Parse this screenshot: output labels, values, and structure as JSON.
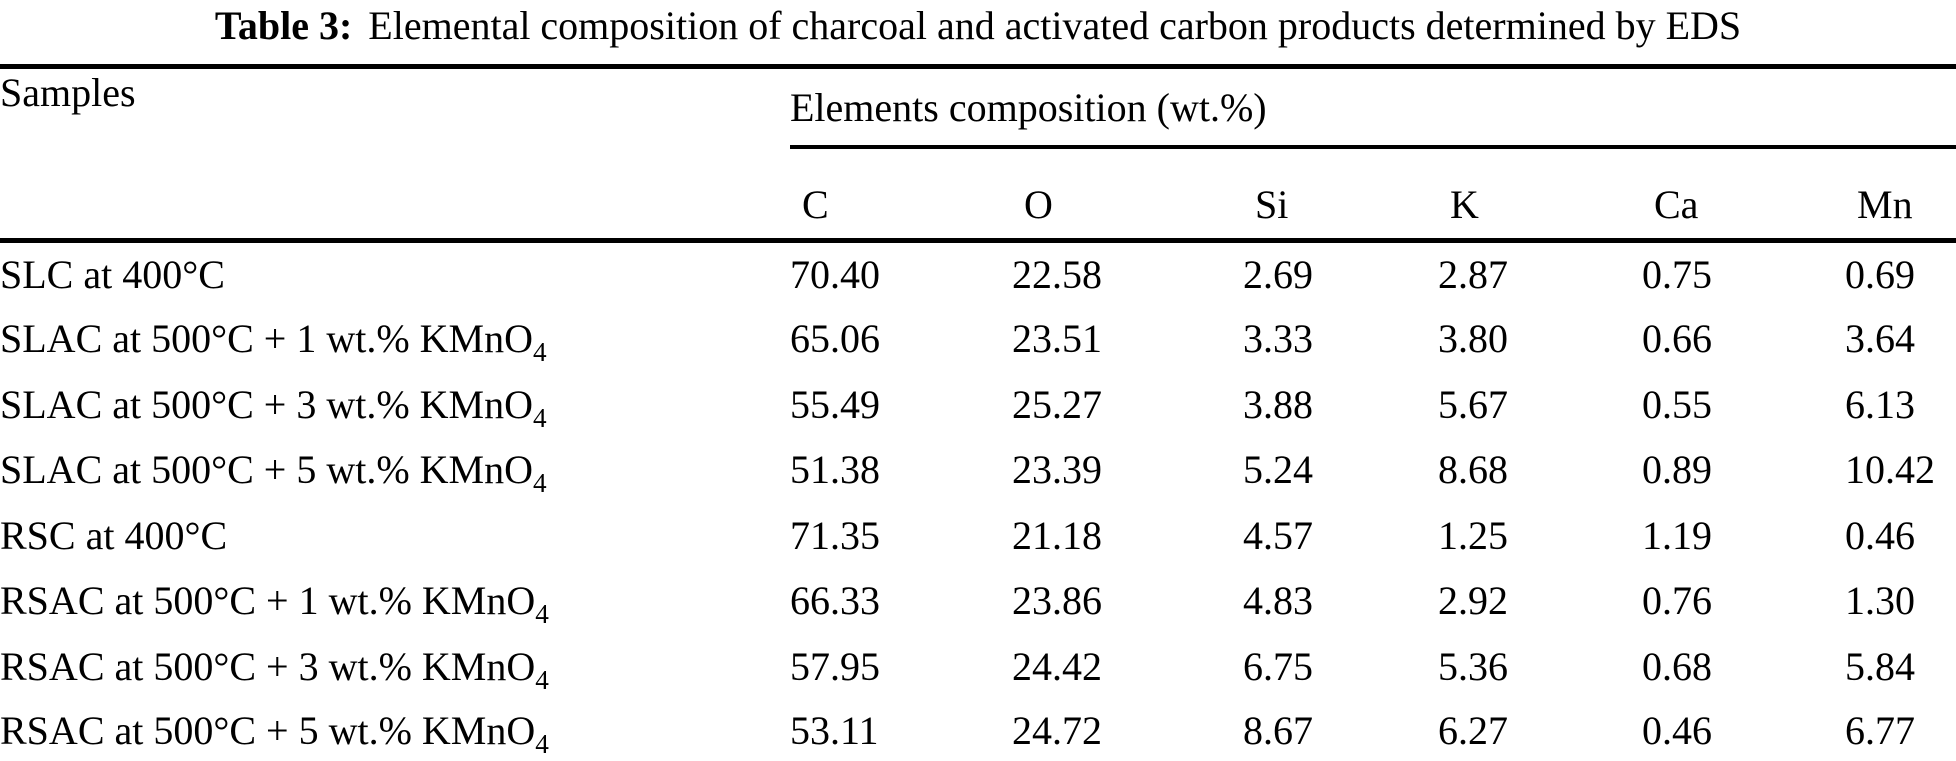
{
  "table": {
    "title_label": "Table 3:",
    "title_text": "Elemental composition of charcoal and activated carbon products determined by EDS",
    "header": {
      "samples": "Samples",
      "group": "Elements composition (wt.%)",
      "columns": [
        "C",
        "O",
        "Si",
        "K",
        "Ca",
        "Mn"
      ]
    },
    "rows": [
      {
        "label": "SLC at 400°C",
        "values": [
          "70.40",
          "22.58",
          "2.69",
          "2.87",
          "0.75",
          "0.69"
        ]
      },
      {
        "label": "SLAC at 500°C + 1 wt.% KMnO₄",
        "values": [
          "65.06",
          "23.51",
          "3.33",
          "3.80",
          "0.66",
          "3.64"
        ]
      },
      {
        "label": "SLAC at 500°C + 3 wt.% KMnO₄",
        "values": [
          "55.49",
          "25.27",
          "3.88",
          "5.67",
          "0.55",
          "6.13"
        ]
      },
      {
        "label": "SLAC at 500°C + 5 wt.% KMnO₄",
        "values": [
          "51.38",
          "23.39",
          "5.24",
          "8.68",
          "0.89",
          "10.42"
        ]
      },
      {
        "label": "RSC at 400°C",
        "values": [
          "71.35",
          "21.18",
          "4.57",
          "1.25",
          "1.19",
          "0.46"
        ]
      },
      {
        "label": "RSAC at 500°C + 1 wt.% KMnO₄",
        "values": [
          "66.33",
          "23.86",
          "4.83",
          "2.92",
          "0.76",
          "1.30"
        ]
      },
      {
        "label": "RSAC at 500°C + 3 wt.% KMnO₄",
        "values": [
          "57.95",
          "24.42",
          "6.75",
          "5.36",
          "0.68",
          "5.84"
        ]
      },
      {
        "label": "RSAC at 500°C + 5 wt.% KMnO₄",
        "values": [
          "53.11",
          "24.72",
          "8.67",
          "6.27",
          "0.46",
          "6.77"
        ]
      }
    ]
  },
  "chart_data": {
    "type": "table",
    "title": "Table 3: Elemental composition of charcoal and activated carbon products determined by EDS",
    "column_group_label": "Elements composition (wt.%)",
    "columns": [
      "Samples",
      "C",
      "O",
      "Si",
      "K",
      "Ca",
      "Mn"
    ],
    "rows": [
      [
        "SLC at 400°C",
        70.4,
        22.58,
        2.69,
        2.87,
        0.75,
        0.69
      ],
      [
        "SLAC at 500°C + 1 wt.% KMnO₄",
        65.06,
        23.51,
        3.33,
        3.8,
        0.66,
        3.64
      ],
      [
        "SLAC at 500°C + 3 wt.% KMnO₄",
        55.49,
        25.27,
        3.88,
        5.67,
        0.55,
        6.13
      ],
      [
        "SLAC at 500°C + 5 wt.% KMnO₄",
        51.38,
        23.39,
        5.24,
        8.68,
        0.89,
        10.42
      ],
      [
        "RSC at 400°C",
        71.35,
        21.18,
        4.57,
        1.25,
        1.19,
        0.46
      ],
      [
        "RSAC at 500°C + 1 wt.% KMnO₄",
        66.33,
        23.86,
        4.83,
        2.92,
        0.76,
        1.3
      ],
      [
        "RSAC at 500°C + 3 wt.% KMnO₄",
        57.95,
        24.42,
        6.75,
        5.36,
        0.68,
        5.84
      ],
      [
        "RSAC at 500°C + 5 wt.% KMnO₄",
        53.11,
        24.72,
        8.67,
        6.27,
        0.46,
        6.77
      ]
    ]
  }
}
